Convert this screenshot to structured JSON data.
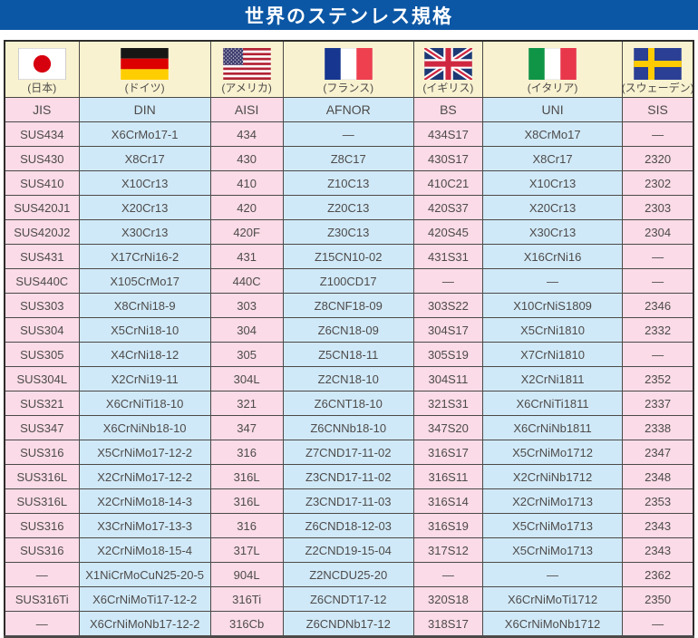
{
  "title": "世界のステンレス規格",
  "colors": {
    "accent_blue": "#0c57a5",
    "cell_pink": "#fadbe7",
    "cell_blue": "#d0e9f8",
    "header_cream": "#f9f2d0",
    "grid_line": "#4b4948",
    "text": "#4d4b4a"
  },
  "columns": [
    {
      "flag": "flag-japan",
      "country": "(日本)",
      "standard": "JIS"
    },
    {
      "flag": "flag-germany",
      "country": "(ドイツ)",
      "standard": "DIN"
    },
    {
      "flag": "flag-usa",
      "country": "(アメリカ)",
      "standard": "AISI"
    },
    {
      "flag": "flag-france",
      "country": "(フランス)",
      "standard": "AFNOR"
    },
    {
      "flag": "flag-uk",
      "country": "(イギリス)",
      "standard": "BS"
    },
    {
      "flag": "flag-italy",
      "country": "(イタリア)",
      "standard": "UNI"
    },
    {
      "flag": "flag-sweden",
      "country": "(スウェーデン)",
      "standard": "SIS"
    }
  ],
  "rows": [
    [
      "SUS434",
      "X6CrMo17-1",
      "434",
      "—",
      "434S17",
      "X8CrMo17",
      "—"
    ],
    [
      "SUS430",
      "X8Cr17",
      "430",
      "Z8C17",
      "430S17",
      "X8Cr17",
      "2320"
    ],
    [
      "SUS410",
      "X10Cr13",
      "410",
      "Z10C13",
      "410C21",
      "X10Cr13",
      "2302"
    ],
    [
      "SUS420J1",
      "X20Cr13",
      "420",
      "Z20C13",
      "420S37",
      "X20Cr13",
      "2303"
    ],
    [
      "SUS420J2",
      "X30Cr13",
      "420F",
      "Z30C13",
      "420S45",
      "X30Cr13",
      "2304"
    ],
    [
      "SUS431",
      "X17CrNi16-2",
      "431",
      "Z15CN10-02",
      "431S31",
      "X16CrNi16",
      "—"
    ],
    [
      "SUS440C",
      "X105CrMo17",
      "440C",
      "Z100CD17",
      "—",
      "—",
      "—"
    ],
    [
      "SUS303",
      "X8CrNi18-9",
      "303",
      "Z8CNF18-09",
      "303S22",
      "X10CrNiS1809",
      "2346"
    ],
    [
      "SUS304",
      "X5CrNi18-10",
      "304",
      "Z6CN18-09",
      "304S17",
      "X5CrNi1810",
      "2332"
    ],
    [
      "SUS305",
      "X4CrNi18-12",
      "305",
      "Z5CN18-11",
      "305S19",
      "X7CrNi1810",
      "—"
    ],
    [
      "SUS304L",
      "X2CrNi19-11",
      "304L",
      "Z2CN18-10",
      "304S11",
      "X2CrNi1811",
      "2352"
    ],
    [
      "SUS321",
      "X6CrNiTi18-10",
      "321",
      "Z6CNT18-10",
      "321S31",
      "X6CrNiTi1811",
      "2337"
    ],
    [
      "SUS347",
      "X6CrNiNb18-10",
      "347",
      "Z6CNNb18-10",
      "347S20",
      "X6CrNiNb1811",
      "2338"
    ],
    [
      "SUS316",
      "X5CrNiMo17-12-2",
      "316",
      "Z7CND17-11-02",
      "316S17",
      "X5CrNiMo1712",
      "2347"
    ],
    [
      "SUS316L",
      "X2CrNiMo17-12-2",
      "316L",
      "Z3CND17-11-02",
      "316S11",
      "X2CrNiNb1712",
      "2348"
    ],
    [
      "SUS316L",
      "X2CrNiMo18-14-3",
      "316L",
      "Z3CND17-11-03",
      "316S14",
      "X2CrNiMo1713",
      "2353"
    ],
    [
      "SUS316",
      "X3CrNiMo17-13-3",
      "316",
      "Z6CND18-12-03",
      "316S19",
      "X5CrNiMo1713",
      "2343"
    ],
    [
      "SUS316",
      "X2CrNiMo18-15-4",
      "317L",
      "Z2CND19-15-04",
      "317S12",
      "X5CrNiMo1713",
      "2343"
    ],
    [
      "—",
      "X1NiCrMoCuN25-20-5",
      "904L",
      "Z2NCDU25-20",
      "—",
      "—",
      "2362"
    ],
    [
      "SUS316Ti",
      "X6CrNiMoTi17-12-2",
      "316Ti",
      "Z6CNDT17-12",
      "320S18",
      "X6CrNiMoTi1712",
      "2350"
    ],
    [
      "—",
      "X6CrNiMoNb17-12-2",
      "316Cb",
      "Z6CNDNb17-12",
      "318S17",
      "X6CrNiMoNb1712",
      "—"
    ]
  ]
}
